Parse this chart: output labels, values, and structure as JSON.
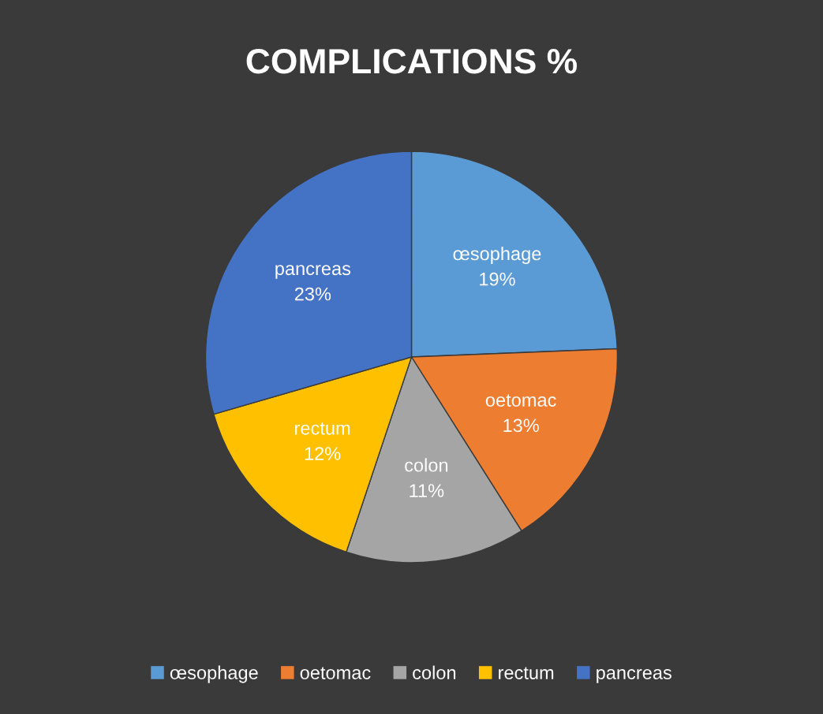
{
  "chart_data": {
    "type": "pie",
    "title": "COMPLICATIONS %",
    "categories": [
      "œsophage",
      "oetomac",
      "colon",
      "rectum",
      "pancreas"
    ],
    "values": [
      19,
      13,
      11,
      12,
      23
    ],
    "value_labels": [
      "19%",
      "13%",
      "11%",
      "12%",
      "23%"
    ],
    "colors": [
      "#5b9bd5",
      "#ed7d31",
      "#a5a5a5",
      "#ffc000",
      "#4472c4"
    ],
    "legend": "bottom"
  }
}
